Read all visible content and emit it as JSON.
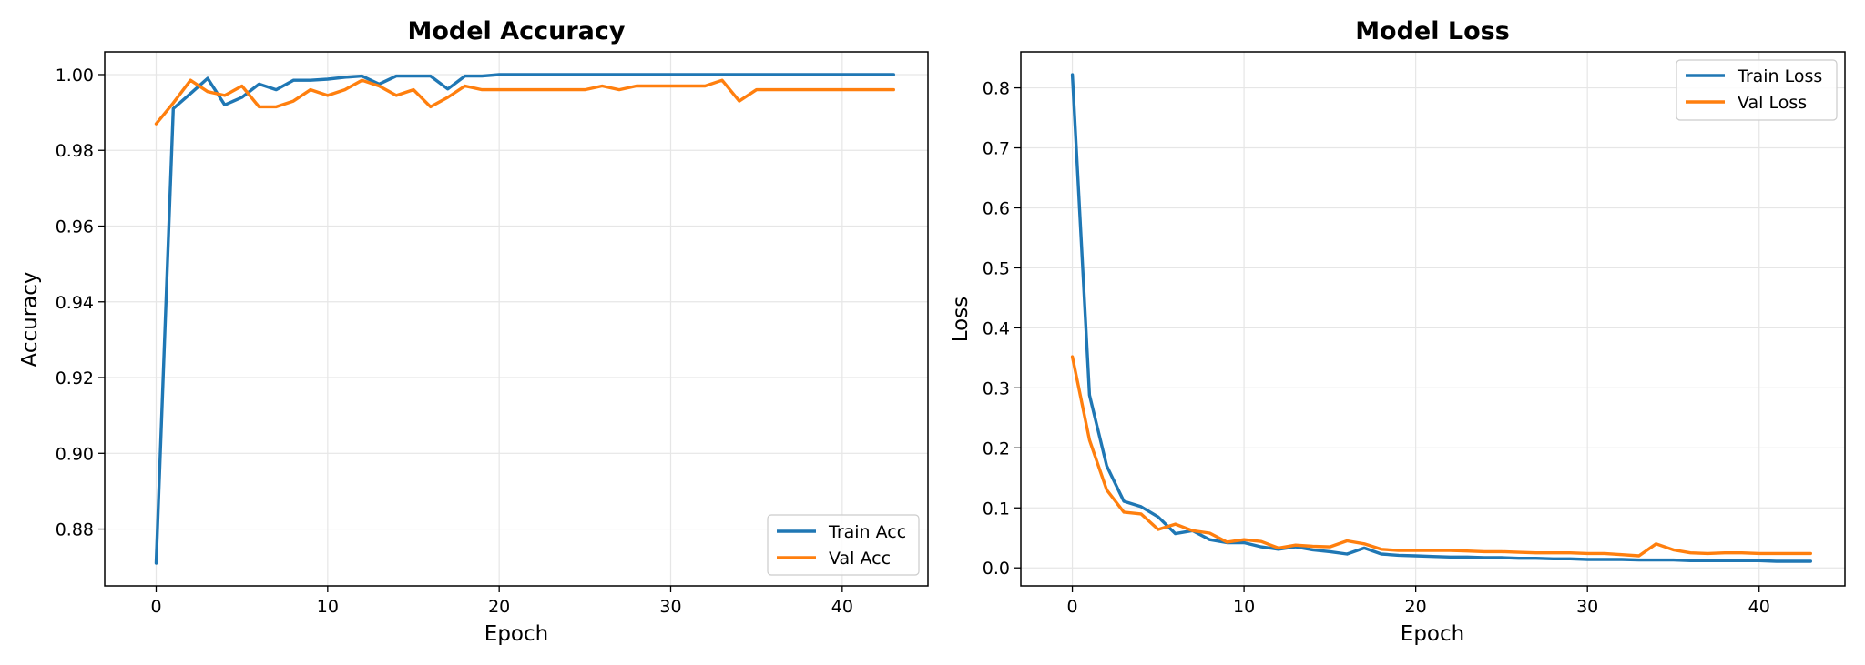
{
  "chart_data": [
    {
      "type": "line",
      "title": "Model Accuracy",
      "xlabel": "Epoch",
      "ylabel": "Accuracy",
      "xlim": [
        -3,
        45
      ],
      "ylim": [
        0.865,
        1.006
      ],
      "xticks": [
        0,
        10,
        20,
        30,
        40
      ],
      "yticks": [
        0.88,
        0.9,
        0.92,
        0.94,
        0.96,
        0.98,
        1.0
      ],
      "ytick_labels": [
        "0.88",
        "0.90",
        "0.92",
        "0.94",
        "0.96",
        "0.98",
        "1.00"
      ],
      "grid": true,
      "legend_position": "bottom-right",
      "series": [
        {
          "name": "Train Acc",
          "color": "#1f77b4",
          "x": [
            0,
            1,
            2,
            3,
            4,
            5,
            6,
            7,
            8,
            9,
            10,
            11,
            12,
            13,
            14,
            15,
            16,
            17,
            18,
            19,
            20,
            21,
            22,
            23,
            24,
            25,
            26,
            27,
            28,
            29,
            30,
            31,
            32,
            33,
            34,
            35,
            36,
            37,
            38,
            39,
            40,
            41,
            42,
            43
          ],
          "values": [
            0.871,
            0.991,
            0.995,
            0.999,
            0.992,
            0.994,
            0.9975,
            0.996,
            0.9985,
            0.9985,
            0.9988,
            0.9993,
            0.9996,
            0.9975,
            0.9996,
            0.9996,
            0.9996,
            0.9962,
            0.9996,
            0.9996,
            1.0,
            1.0,
            1.0,
            1.0,
            1.0,
            1.0,
            1.0,
            1.0,
            1.0,
            1.0,
            1.0,
            1.0,
            1.0,
            1.0,
            1.0,
            1.0,
            1.0,
            1.0,
            1.0,
            1.0,
            1.0,
            1.0,
            1.0,
            1.0
          ]
        },
        {
          "name": "Val Acc",
          "color": "#ff7f0e",
          "x": [
            0,
            1,
            2,
            3,
            4,
            5,
            6,
            7,
            8,
            9,
            10,
            11,
            12,
            13,
            14,
            15,
            16,
            17,
            18,
            19,
            20,
            21,
            22,
            23,
            24,
            25,
            26,
            27,
            28,
            29,
            30,
            31,
            32,
            33,
            34,
            35,
            36,
            37,
            38,
            39,
            40,
            41,
            42,
            43
          ],
          "values": [
            0.987,
            0.9925,
            0.9985,
            0.9955,
            0.9945,
            0.997,
            0.9915,
            0.9915,
            0.993,
            0.996,
            0.9945,
            0.996,
            0.9985,
            0.997,
            0.9945,
            0.996,
            0.9915,
            0.994,
            0.997,
            0.996,
            0.996,
            0.996,
            0.996,
            0.996,
            0.996,
            0.996,
            0.997,
            0.996,
            0.997,
            0.997,
            0.997,
            0.997,
            0.997,
            0.9985,
            0.993,
            0.996,
            0.996,
            0.996,
            0.996,
            0.996,
            0.996,
            0.996,
            0.996,
            0.996
          ]
        }
      ]
    },
    {
      "type": "line",
      "title": "Model Loss",
      "xlabel": "Epoch",
      "ylabel": "Loss",
      "xlim": [
        -3,
        45
      ],
      "ylim": [
        -0.03,
        0.86
      ],
      "xticks": [
        0,
        10,
        20,
        30,
        40
      ],
      "yticks": [
        0.0,
        0.1,
        0.2,
        0.3,
        0.4,
        0.5,
        0.6,
        0.7,
        0.8
      ],
      "ytick_labels": [
        "0.0",
        "0.1",
        "0.2",
        "0.3",
        "0.4",
        "0.5",
        "0.6",
        "0.7",
        "0.8"
      ],
      "grid": true,
      "legend_position": "top-right",
      "series": [
        {
          "name": "Train Loss",
          "color": "#1f77b4",
          "x": [
            0,
            1,
            2,
            3,
            4,
            5,
            6,
            7,
            8,
            9,
            10,
            11,
            12,
            13,
            14,
            15,
            16,
            17,
            18,
            19,
            20,
            21,
            22,
            23,
            24,
            25,
            26,
            27,
            28,
            29,
            30,
            31,
            32,
            33,
            34,
            35,
            36,
            37,
            38,
            39,
            40,
            41,
            42,
            43
          ],
          "values": [
            0.822,
            0.288,
            0.17,
            0.111,
            0.102,
            0.085,
            0.057,
            0.062,
            0.047,
            0.042,
            0.042,
            0.035,
            0.031,
            0.035,
            0.03,
            0.027,
            0.023,
            0.033,
            0.023,
            0.021,
            0.02,
            0.019,
            0.018,
            0.018,
            0.017,
            0.017,
            0.016,
            0.016,
            0.015,
            0.015,
            0.014,
            0.014,
            0.014,
            0.013,
            0.013,
            0.013,
            0.012,
            0.012,
            0.012,
            0.012,
            0.012,
            0.011,
            0.011,
            0.011
          ]
        },
        {
          "name": "Val Loss",
          "color": "#ff7f0e",
          "x": [
            0,
            1,
            2,
            3,
            4,
            5,
            6,
            7,
            8,
            9,
            10,
            11,
            12,
            13,
            14,
            15,
            16,
            17,
            18,
            19,
            20,
            21,
            22,
            23,
            24,
            25,
            26,
            27,
            28,
            29,
            30,
            31,
            32,
            33,
            34,
            35,
            36,
            37,
            38,
            39,
            40,
            41,
            42,
            43
          ],
          "values": [
            0.352,
            0.213,
            0.13,
            0.093,
            0.09,
            0.064,
            0.073,
            0.062,
            0.058,
            0.043,
            0.047,
            0.044,
            0.033,
            0.038,
            0.036,
            0.035,
            0.045,
            0.04,
            0.031,
            0.029,
            0.029,
            0.029,
            0.029,
            0.028,
            0.027,
            0.027,
            0.026,
            0.025,
            0.025,
            0.025,
            0.024,
            0.024,
            0.022,
            0.02,
            0.04,
            0.03,
            0.025,
            0.024,
            0.025,
            0.025,
            0.024,
            0.024,
            0.024,
            0.024
          ]
        }
      ]
    }
  ]
}
